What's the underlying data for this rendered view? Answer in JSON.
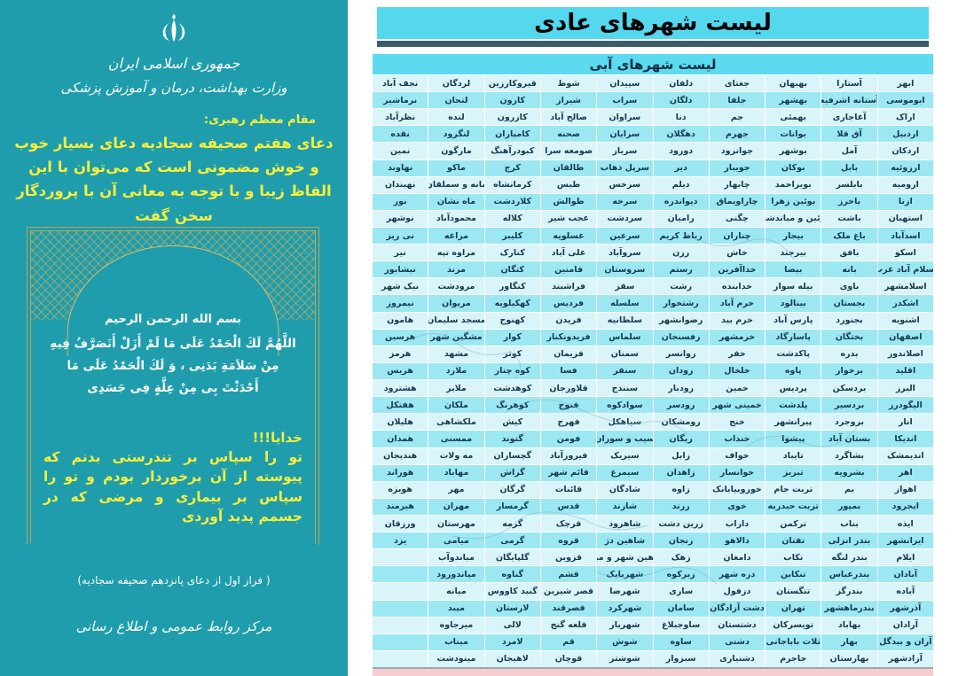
{
  "left_panel": {
    "title": "لیست شهرهای عادی",
    "subtitle": "لیست شهرهای آبی",
    "table": {
      "columns": [
        [
          "ابهر",
          "ابوموسی",
          "اراک",
          "اردبیل",
          "اردکان",
          "ارزوئیه",
          "ارومیه",
          "ازنا",
          "استهبان",
          "اسدآباد",
          "اسکو",
          "اسلام آباد غرب",
          "اسلامشهر",
          "اشکذر",
          "اشنویه",
          "اصفهان",
          "اصلاندوز",
          "اقلید",
          "البرز",
          "الیگودرز",
          "انار",
          "اندیکا",
          "اندیمشک",
          "اهر",
          "اهواز",
          "ایجرود",
          "ایذه",
          "ایرانشهر",
          "ایلام",
          "آبادان",
          "آباده",
          "آذرشهر",
          "آرادان",
          "آران و بیدگل",
          "آزادشهر"
        ],
        [
          "آستارا",
          "آستانه اشرفیه",
          "آغاجاری",
          "آق قلا",
          "آمل",
          "بابل",
          "بابلسر",
          "باخرز",
          "باشت",
          "باغ ملک",
          "بافق",
          "بانه",
          "باوی",
          "بجستان",
          "بجنورد",
          "بختگان",
          "بدره",
          "برخوار",
          "بردسکن",
          "بردسیر",
          "بروجرد",
          "بستان آباد",
          "بشاگرد",
          "بشرویه",
          "بم",
          "بمپور",
          "بناب",
          "بندر انزلی",
          "بندر لنگه",
          "بندرعباس",
          "بندرگز",
          "بندرماهشهر",
          "بهاباد",
          "بهار",
          "بهارستان"
        ],
        [
          "بهبهان",
          "بهشهر",
          "بهمئی",
          "بوانات",
          "بوشهر",
          "بوکان",
          "بویراحمد",
          "بوئین زهرا",
          "بوئین و میاندشت",
          "بیجار",
          "بیرجند",
          "بیضا",
          "بیله سوار",
          "بینالود",
          "پارس آباد",
          "پاسارگاد",
          "پاکدشت",
          "پاوه",
          "پردیس",
          "پلدشت",
          "پیرانشهر",
          "پیشوا",
          "تایباد",
          "تبریز",
          "تربت جام",
          "تربت حیدریه",
          "ترکمن",
          "تفتان",
          "تکاب",
          "تنکابن",
          "تنگستان",
          "تهران",
          "تویسرکان",
          "ثلاث باباجانی",
          "جاجرم"
        ],
        [
          "جغتای",
          "جلفا",
          "جم",
          "جهرم",
          "جوانرود",
          "جویبار",
          "چابهار",
          "چاراویماق",
          "چگنی",
          "چناران",
          "خاش",
          "خداآفرین",
          "خدابنده",
          "خرم آباد",
          "خرم بید",
          "خرمشهر",
          "خفر",
          "خلخال",
          "خمین",
          "خمینی شهر",
          "خنج",
          "خنداب",
          "خواف",
          "خوانسار",
          "خوروبیابانک",
          "خوی",
          "داراب",
          "دالاهو",
          "دامغان",
          "دره شهر",
          "دزفول",
          "دشت آزادگان",
          "دشتستان",
          "دشتی",
          "دشتیاری"
        ],
        [
          "دلفان",
          "دلگان",
          "دنا",
          "دهگلان",
          "دورود",
          "دیر",
          "دیلم",
          "دیواندره",
          "رامیان",
          "رباط کریم",
          "رزن",
          "رستم",
          "رشت",
          "رشتخوار",
          "رضوانشهر",
          "رفسنجان",
          "روانسر",
          "رودان",
          "رودبار",
          "رودسر",
          "رومشکان",
          "ریگان",
          "زابل",
          "زاهدان",
          "زاوه",
          "زرند",
          "زرین دشت",
          "زنجان",
          "زهک",
          "زیرکوه",
          "ساری",
          "سامان",
          "ساوجبلاغ",
          "ساوه",
          "سبزوار"
        ],
        [
          "سپیدان",
          "سراب",
          "سراوان",
          "سرایان",
          "سرباز",
          "سرپل ذهاب",
          "سرخس",
          "سرخه",
          "سردشت",
          "سرعین",
          "سروآباد",
          "سروستان",
          "سقز",
          "سلسله",
          "سلطانیه",
          "سلماس",
          "سمنان",
          "سنقر",
          "سنندج",
          "سوادکوه",
          "سیاهکل",
          "سیب و سوران",
          "سیریک",
          "سیمرغ",
          "شادگان",
          "شازند",
          "شاهرود",
          "شاهین دژ",
          "شاهین شهر و میمه",
          "شهربابک",
          "شهرضا",
          "شهرکرد",
          "شهریار",
          "شوش",
          "شوشتر"
        ],
        [
          "شوط",
          "شیراز",
          "صالح آباد",
          "صحنه",
          "صومعه سرا",
          "طالقان",
          "طبس",
          "طوالش",
          "عجب شیر",
          "عسلویه",
          "علی آباد",
          "فامنین",
          "فراشبند",
          "فردیس",
          "فریدن",
          "فریدونکنار",
          "فریمان",
          "فسا",
          "فلاورجان",
          "فنوج",
          "فهرج",
          "فومن",
          "فیروزآباد",
          "قائم شهر",
          "قائنات",
          "قدس",
          "قرچک",
          "قروه",
          "قزوین",
          "قشم",
          "قصر شیرین",
          "قصرقند",
          "قلعه گنج",
          "قم",
          "قوچان"
        ],
        [
          "قیروکارزین",
          "کارون",
          "کازرون",
          "کامیاران",
          "کبودرآهنگ",
          "کرج",
          "کرمانشاه",
          "کلاردشت",
          "کلاله",
          "کلیبر",
          "کنارک",
          "کنگان",
          "کنگاور",
          "کهکیلویه",
          "کهنوج",
          "کوار",
          "کوثر",
          "کوه چنار",
          "کوهدشت",
          "کوهرنگ",
          "کیش",
          "گتوند",
          "گچساران",
          "گراش",
          "گرگان",
          "گرمسار",
          "گرمه",
          "گرمی",
          "گلپایگان",
          "گناوه",
          "گنبد کاووس",
          "لارستان",
          "لالی",
          "لامرد",
          "لاهیجان"
        ],
        [
          "لردگان",
          "لنجان",
          "لنده",
          "لنگرود",
          "مارگون",
          "ماکو",
          "مانه و سملقان",
          "ماه نشان",
          "محمودآباد",
          "مراغه",
          "مراوه تپه",
          "مرند",
          "مرودشت",
          "مریوان",
          "مسجد سلیمان",
          "مشگین شهر",
          "مشهد",
          "ملارد",
          "ملایر",
          "ملکان",
          "ملکشاهی",
          "ممسنی",
          "مه ولات",
          "مهاباد",
          "مهر",
          "مهران",
          "مهرستان",
          "میامی",
          "میاندوآب",
          "میاندورود",
          "میانه",
          "میبد",
          "میرجاوه",
          "میناب",
          "مینودشت"
        ],
        [
          "نجف آباد",
          "نرماشیر",
          "نظرآباد",
          "نقده",
          "نمین",
          "نهاوند",
          "نهبندان",
          "نور",
          "نوشهر",
          "نی ریز",
          "نیر",
          "نیشابور",
          "نیک شهر",
          "نیمروز",
          "هامون",
          "هرسین",
          "هرمز",
          "هریس",
          "هشترود",
          "هفتکل",
          "هلیلان",
          "همدان",
          "هندیجان",
          "هوراند",
          "هویزه",
          "هیرمند",
          "ورزقان",
          "یزد",
          "",
          "",
          "",
          "",
          "",
          "",
          ""
        ]
      ]
    }
  },
  "right_panel": {
    "emblem": "iran-national-emblem",
    "gov_line1": "جمهوری اسلامی ایران",
    "gov_line2": "وزارت بهداشت، درمان و آموزش پزشکی",
    "leader_label": "مقام معظم رهبری:",
    "leader_quote": "دعای هفتم صحیفه سجادیه دعای بسیار خوب و خوش مضمونی است که می‌توان با این الفاظ زیبا و با توجه به معانی آن با پروردگار سخن گفت",
    "basmala": "بسم الله الرحمن الرحیم",
    "prayer_arabic": "اللَّهُمَّ لَكَ الْحَمْدُ عَلَى مَا لَمْ أَزَلْ أَتَصَرَّفُ فِيهِ مِنْ سَلاَمَةِ بَدَنِى ، وَ لَكَ الْحَمْدُ عَلَى مَا أَحْدَثْتَ بِى مِنْ عِلَّةٍ فِى جَسَدِى",
    "khodaya": "خدایا!!!",
    "prayer_persian": "تو را سپاس بر تندرستی بدنم که پیوسته از آن برخوردار بودم و تو را سپاس بر بیماری و مرضی که در جسمم پدید آوردی",
    "footnote": "( فراز اول از دعای پانزدهم صحیفه سجادیه)",
    "footer": "مرکز روابط عمومی و اطلاع رسانی"
  },
  "colors": {
    "teal_panel": "#1f9dac",
    "cyan_header": "#55d7ee",
    "cyan_subheader": "#5cdaf0",
    "dark_bar": "#3f5d68",
    "row_light": "#d9f5fa",
    "row_dark": "#9be8f3",
    "cell_text": "#16384d",
    "accent_yellow": "#f7ef3d",
    "frame_gold": "#c0a24f",
    "pink_strip": "#f6ccd0"
  }
}
